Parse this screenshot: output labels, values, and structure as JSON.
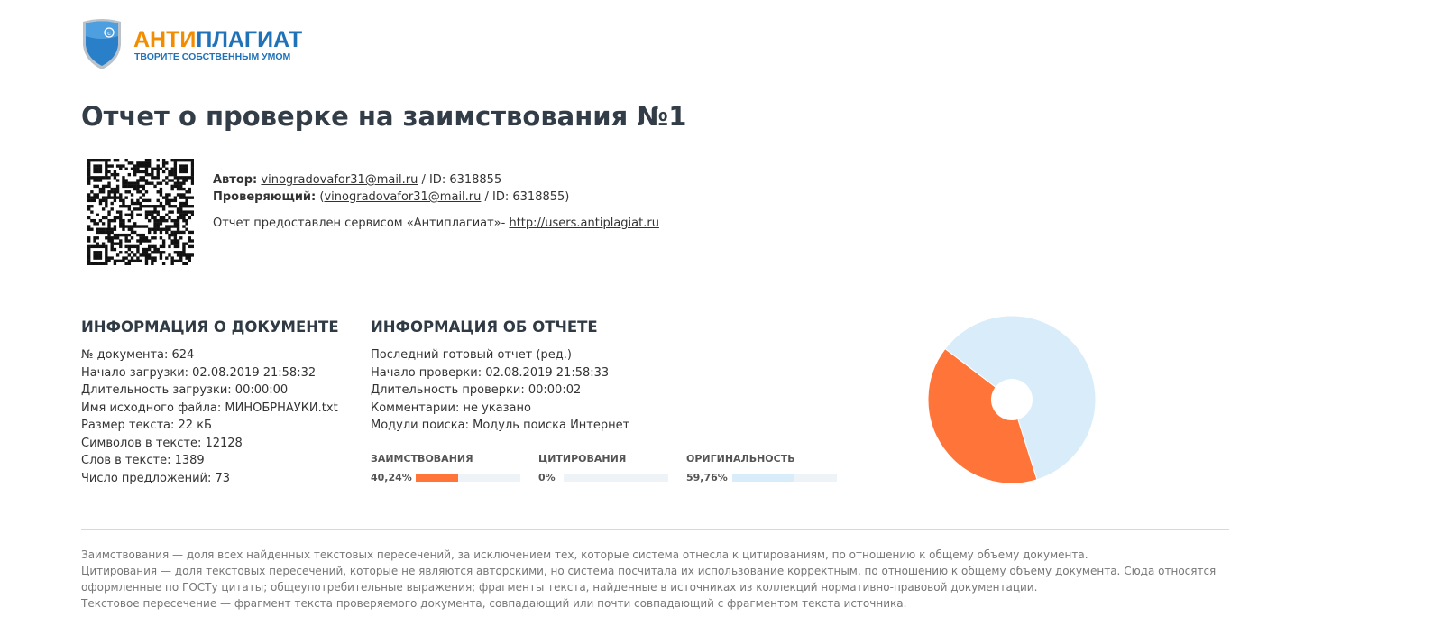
{
  "logo": {
    "part1": "АНТИ",
    "part2": "ПЛАГИАТ",
    "tagline": "ТВОРИТЕ СОБСТВЕННЫМ УМОМ",
    "colors": {
      "orange": "#f28c00",
      "blue": "#1f72b8"
    }
  },
  "title": "Отчет о проверке на заимствования №1",
  "author": {
    "label": "Автор:",
    "email": "vinogradovafor31@mail.ru",
    "id": " / ID: 6318855"
  },
  "checker": {
    "label": "Проверяющий:",
    "open": " (",
    "email": "vinogradovafor31@mail.ru",
    "id": " / ID: 6318855)"
  },
  "provided": {
    "text": "Отчет предоставлен сервисом «Антиплагиат»- ",
    "link": "http://users.antiplagiat.ru"
  },
  "doc_info": {
    "heading": "ИНФОРМАЦИЯ О ДОКУМЕНТЕ",
    "lines": [
      "№ документа: 624",
      "Начало загрузки: 02.08.2019 21:58:32",
      "Длительность загрузки: 00:00:00",
      "Имя исходного файла: МИНОБРНАУКИ.txt",
      "Размер текста: 22 кБ",
      "Символов в тексте: 12128",
      "Слов в тексте: 1389",
      "Число предложений: 73"
    ]
  },
  "report_info": {
    "heading": "ИНФОРМАЦИЯ ОБ ОТЧЕТЕ",
    "lines": [
      "Последний готовый отчет (ред.)",
      "Начало проверки: 02.08.2019 21:58:33",
      "Длительность проверки: 00:00:02",
      "Комментарии: не указано",
      "Модули поиска: Модуль поиска Интернет"
    ]
  },
  "stats": [
    {
      "label": "ЗАИМСТВОВАНИЯ",
      "value": "40,24%",
      "percent": 40.24,
      "color": "#ff7439"
    },
    {
      "label": "ЦИТИРОВАНИЯ",
      "value": "0%",
      "percent": 0,
      "color": "#6fbf5f"
    },
    {
      "label": "ОРИГИНАЛЬНОСТЬ",
      "value": "59,76%",
      "percent": 59.76,
      "color": "#d9ecf9"
    }
  ],
  "footer": [
    "Заимствования — доля всех найденных текстовых пересечений, за исключением тех, которые система отнесла к цитированиям, по отношению к общему объему документа.",
    "Цитирования — доля текстовых пересечений, которые не являются авторскими, но система посчитала их использование корректным, по отношению к общему объему документа. Сюда относятся оформленные по ГОСТу цитаты; общеупотребительные выражения; фрагменты текста, найденные в источниках из коллекций нормативно-правовой документации.",
    "Текстовое пересечение — фрагмент текста проверяемого документа, совпадающий или почти совпадающий с фрагментом текста источника."
  ]
}
